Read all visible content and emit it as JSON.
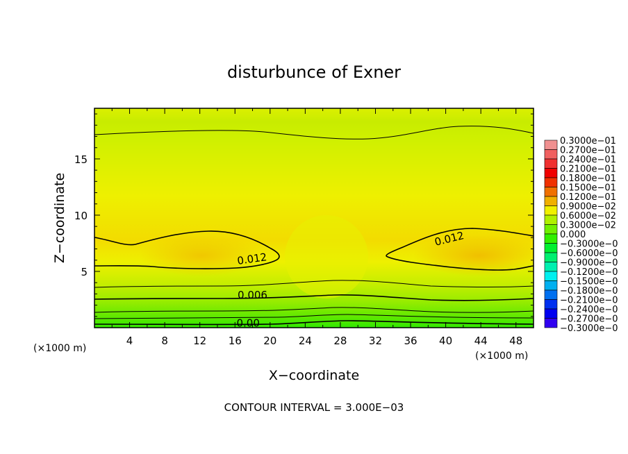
{
  "chart_data": {
    "type": "heatmap",
    "title": "disturbunce of Exner",
    "xlabel": "X−coordinate",
    "ylabel": "Z−coordinate",
    "x_unit_left": "(×1000 m)",
    "x_unit_right": "(×1000 m)",
    "footer": "CONTOUR INTERVAL = 3.000E−03",
    "xlim": [
      0,
      50
    ],
    "ylim": [
      0,
      19.5
    ],
    "x_ticks": [
      4,
      8,
      12,
      16,
      20,
      24,
      28,
      32,
      36,
      40,
      44,
      48
    ],
    "x_tick_labels": [
      "4",
      "8",
      "12",
      "16",
      "20",
      "24",
      "28",
      "32",
      "36",
      "40",
      "44",
      "48"
    ],
    "y_ticks": [
      5,
      10,
      15
    ],
    "y_tick_labels": [
      "5",
      "10",
      "15"
    ],
    "contour_interval": 0.003,
    "contour_labels": [
      {
        "text": "0.012",
        "x": 18.0,
        "z": 5.8,
        "angle": -8
      },
      {
        "text": "0.012",
        "x": 40.5,
        "z": 7.6,
        "angle": -14
      },
      {
        "text": "0.006",
        "x": 18.0,
        "z": 2.6,
        "angle": 0
      },
      {
        "text": "0.00",
        "x": 17.5,
        "z": 0.1,
        "angle": 0
      }
    ],
    "colorbar": {
      "levels": [
        "0.3000e−01",
        "0.2700e−01",
        "0.2400e−01",
        "0.2100e−01",
        "0.1800e−01",
        "0.1500e−01",
        "0.1200e−01",
        "0.9000e−02",
        "0.6000e−02",
        "0.3000e−02",
        "0.000",
        "−0.3000e−0",
        "−0.6000e−0",
        "−0.9000e−0",
        "−0.1200e−0",
        "−0.1500e−0",
        "−0.1800e−0",
        "−0.2100e−0",
        "−0.2400e−0",
        "−0.2700e−0",
        "−0.3000e−0"
      ],
      "colors": [
        "#f09090",
        "#f06060",
        "#f03030",
        "#f00000",
        "#f03000",
        "#f07000",
        "#f0b000",
        "#f0f000",
        "#b0f000",
        "#70f000",
        "#30f000",
        "#00f030",
        "#00f070",
        "#00f0b0",
        "#00f0f0",
        "#00b0f0",
        "#0070f0",
        "#0030f0",
        "#0000f0",
        "#3000f0",
        "#7000c0"
      ]
    }
  }
}
